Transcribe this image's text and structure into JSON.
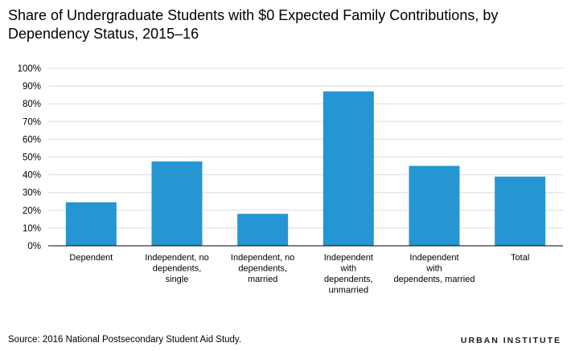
{
  "title": "Share of Undergraduate Students with $0 Expected Family Contributions, by Dependency Status, 2015–16",
  "source": "Source: 2016 National Postsecondary Student Aid Study.",
  "brand": "URBAN INSTITUTE",
  "colors": {
    "bar": "#2596d2",
    "grid": "#dcdcdc",
    "axis": "#000000"
  },
  "chart_data": {
    "type": "bar",
    "categories": [
      [
        "Dependent"
      ],
      [
        "Independent, no",
        "dependents,",
        "single"
      ],
      [
        "Independent, no",
        "dependents,",
        "married"
      ],
      [
        "Independent",
        "with",
        "dependents,",
        "unmarried"
      ],
      [
        "Independent",
        "with",
        "dependents, married"
      ],
      [
        "Total"
      ]
    ],
    "values": [
      24.5,
      47.5,
      18,
      87,
      45,
      39
    ],
    "ylim": [
      0,
      100
    ],
    "yticks": [
      "0%",
      "10%",
      "20%",
      "30%",
      "40%",
      "50%",
      "60%",
      "70%",
      "80%",
      "90%",
      "100%"
    ],
    "grid": true,
    "legend": "none"
  }
}
